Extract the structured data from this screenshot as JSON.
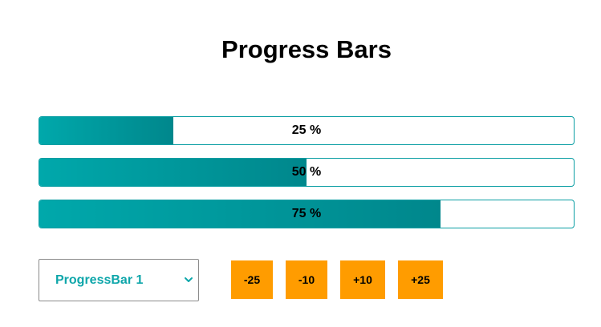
{
  "page": {
    "title": "Progress Bars"
  },
  "progress_bars": [
    {
      "label": "25 %",
      "value": 25
    },
    {
      "label": "50 %",
      "value": 50
    },
    {
      "label": "75 %",
      "value": 75
    }
  ],
  "controls": {
    "selector": {
      "selected": "ProgressBar 1",
      "icon": "chevron-down-icon"
    },
    "buttons": [
      "-25",
      "-10",
      "+10",
      "+25"
    ]
  },
  "colors": {
    "fill_start": "#00a8ab",
    "fill_end": "#00878c",
    "accent_text": "#0ea6aa",
    "button_bg": "#ff9c00"
  }
}
